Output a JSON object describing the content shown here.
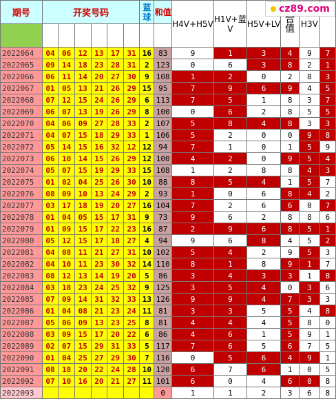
{
  "watermark": "cz89.com",
  "headers": {
    "period": "期号",
    "winning_numbers": "开奖号码",
    "blue_ball": "蓝球",
    "sum": "和值",
    "metrics": [
      "H4V+H5V",
      "H1V+蓝V",
      "H5V+LV",
      "合值",
      "H3V",
      ""
    ]
  },
  "rows": [
    {
      "period": "2022064",
      "reds": [
        "04",
        "06",
        "12",
        "13",
        "17",
        "31"
      ],
      "blue": "16",
      "sum": "83",
      "m": [
        {
          "v": "9",
          "r": false
        },
        {
          "v": "1",
          "r": true
        },
        {
          "v": "3",
          "r": true
        },
        {
          "v": "4",
          "r": true
        },
        {
          "v": "9",
          "r": false
        },
        {
          "v": "7",
          "r": true
        }
      ]
    },
    {
      "period": "2022065",
      "reds": [
        "09",
        "14",
        "18",
        "23",
        "28",
        "31"
      ],
      "blue": "2",
      "sum": "123",
      "m": [
        {
          "v": "0",
          "r": false
        },
        {
          "v": "6",
          "r": false
        },
        {
          "v": "3",
          "r": true
        },
        {
          "v": "8",
          "r": true
        },
        {
          "v": "2",
          "r": false
        },
        {
          "v": "1",
          "r": true
        }
      ]
    },
    {
      "period": "2022066",
      "reds": [
        "06",
        "11",
        "14",
        "20",
        "27",
        "30"
      ],
      "blue": "9",
      "sum": "108",
      "m": [
        {
          "v": "1",
          "r": true
        },
        {
          "v": "2",
          "r": true
        },
        {
          "v": "0",
          "r": false
        },
        {
          "v": "2",
          "r": false
        },
        {
          "v": "8",
          "r": false
        },
        {
          "v": "3",
          "r": true
        }
      ]
    },
    {
      "period": "2022067",
      "reds": [
        "01",
        "05",
        "13",
        "21",
        "26",
        "29"
      ],
      "blue": "15",
      "sum": "95",
      "m": [
        {
          "v": "7",
          "r": true
        },
        {
          "v": "9",
          "r": true
        },
        {
          "v": "6",
          "r": true
        },
        {
          "v": "9",
          "r": true
        },
        {
          "v": "4",
          "r": false
        },
        {
          "v": "5",
          "r": true
        }
      ]
    },
    {
      "period": "2022068",
      "reds": [
        "07",
        "12",
        "15",
        "24",
        "26",
        "29"
      ],
      "blue": "6",
      "sum": "113",
      "m": [
        {
          "v": "7",
          "r": true
        },
        {
          "v": "5",
          "r": true
        },
        {
          "v": "1",
          "r": false
        },
        {
          "v": "8",
          "r": false
        },
        {
          "v": "3",
          "r": false
        },
        {
          "v": "7",
          "r": true
        }
      ]
    },
    {
      "period": "2022069",
      "reds": [
        "06",
        "07",
        "13",
        "19",
        "26",
        "29"
      ],
      "blue": "8",
      "sum": "100",
      "m": [
        {
          "v": "0",
          "r": false
        },
        {
          "v": "6",
          "r": true
        },
        {
          "v": "2",
          "r": false
        },
        {
          "v": "8",
          "r": false
        },
        {
          "v": "5",
          "r": false
        },
        {
          "v": "5",
          "r": true
        }
      ]
    },
    {
      "period": "2022070",
      "reds": [
        "04",
        "06",
        "09",
        "27",
        "28",
        "33"
      ],
      "blue": "2",
      "sum": "107",
      "m": [
        {
          "v": "5",
          "r": true
        },
        {
          "v": "8",
          "r": true
        },
        {
          "v": "4",
          "r": true
        },
        {
          "v": "8",
          "r": true
        },
        {
          "v": "3",
          "r": false
        },
        {
          "v": "3",
          "r": true
        }
      ]
    },
    {
      "period": "2022071",
      "reds": [
        "04",
        "07",
        "15",
        "18",
        "29",
        "33"
      ],
      "blue": "1",
      "sum": "106",
      "m": [
        {
          "v": "5",
          "r": true
        },
        {
          "v": "2",
          "r": false
        },
        {
          "v": "0",
          "r": false
        },
        {
          "v": "0",
          "r": false
        },
        {
          "v": "9",
          "r": true
        },
        {
          "v": "8",
          "r": true
        }
      ]
    },
    {
      "period": "2022072",
      "reds": [
        "05",
        "14",
        "15",
        "16",
        "32",
        "12"
      ],
      "blue": "12",
      "sum": "94",
      "m": [
        {
          "v": "7",
          "r": true
        },
        {
          "v": "1",
          "r": false
        },
        {
          "v": "0",
          "r": false
        },
        {
          "v": "1",
          "r": false
        },
        {
          "v": "5",
          "r": true
        },
        {
          "v": "9",
          "r": false
        }
      ]
    },
    {
      "period": "2022073",
      "reds": [
        "06",
        "10",
        "14",
        "15",
        "26",
        "29"
      ],
      "blue": "12",
      "sum": "100",
      "m": [
        {
          "v": "4",
          "r": true
        },
        {
          "v": "2",
          "r": true
        },
        {
          "v": "0",
          "r": false
        },
        {
          "v": "9",
          "r": true
        },
        {
          "v": "5",
          "r": true
        },
        {
          "v": "4",
          "r": true
        }
      ]
    },
    {
      "period": "2022074",
      "reds": [
        "05",
        "07",
        "15",
        "19",
        "29",
        "33"
      ],
      "blue": "15",
      "sum": "108",
      "m": [
        {
          "v": "1",
          "r": false
        },
        {
          "v": "2",
          "r": false
        },
        {
          "v": "8",
          "r": false
        },
        {
          "v": "8",
          "r": false
        },
        {
          "v": "4",
          "r": true
        },
        {
          "v": "3",
          "r": true
        }
      ]
    },
    {
      "period": "2022075",
      "reds": [
        "01",
        "02",
        "04",
        "25",
        "26",
        "30"
      ],
      "blue": "10",
      "sum": "88",
      "m": [
        {
          "v": "8",
          "r": true
        },
        {
          "v": "5",
          "r": true
        },
        {
          "v": "4",
          "r": true
        },
        {
          "v": "1",
          "r": false
        },
        {
          "v": "5",
          "r": true
        },
        {
          "v": "7",
          "r": false
        }
      ]
    },
    {
      "period": "2022076",
      "reds": [
        "08",
        "09",
        "10",
        "13",
        "24",
        "29"
      ],
      "blue": "2",
      "sum": "93",
      "m": [
        {
          "v": "1",
          "r": true
        },
        {
          "v": "0",
          "r": false
        },
        {
          "v": "6",
          "r": false
        },
        {
          "v": "8",
          "r": true
        },
        {
          "v": "4",
          "r": true
        },
        {
          "v": "2",
          "r": false
        }
      ]
    },
    {
      "period": "2022077",
      "reds": [
        "03",
        "17",
        "18",
        "19",
        "20",
        "27"
      ],
      "blue": "16",
      "sum": "104",
      "m": [
        {
          "v": "7",
          "r": true
        },
        {
          "v": "2",
          "r": false
        },
        {
          "v": "6",
          "r": false
        },
        {
          "v": "6",
          "r": true
        },
        {
          "v": "0",
          "r": false
        },
        {
          "v": "7",
          "r": true
        }
      ]
    },
    {
      "period": "2022078",
      "reds": [
        "01",
        "04",
        "05",
        "15",
        "17",
        "31"
      ],
      "blue": "9",
      "sum": "73",
      "m": [
        {
          "v": "9",
          "r": true
        },
        {
          "v": "6",
          "r": false
        },
        {
          "v": "2",
          "r": false
        },
        {
          "v": "8",
          "r": false
        },
        {
          "v": "8",
          "r": false
        },
        {
          "v": "6",
          "r": false
        }
      ]
    },
    {
      "period": "2022079",
      "reds": [
        "01",
        "09",
        "15",
        "17",
        "22",
        "23"
      ],
      "blue": "16",
      "sum": "87",
      "m": [
        {
          "v": "2",
          "r": true
        },
        {
          "v": "9",
          "r": true
        },
        {
          "v": "6",
          "r": true
        },
        {
          "v": "8",
          "r": true
        },
        {
          "v": "5",
          "r": true
        },
        {
          "v": "1",
          "r": true
        }
      ]
    },
    {
      "period": "2022080",
      "reds": [
        "05",
        "12",
        "15",
        "17",
        "18",
        "27"
      ],
      "blue": "4",
      "sum": "94",
      "m": [
        {
          "v": "9",
          "r": false
        },
        {
          "v": "6",
          "r": false
        },
        {
          "v": "8",
          "r": true
        },
        {
          "v": "4",
          "r": false
        },
        {
          "v": "5",
          "r": false
        },
        {
          "v": "2",
          "r": true
        }
      ]
    },
    {
      "period": "2022081",
      "reds": [
        "04",
        "08",
        "11",
        "21",
        "27",
        "31"
      ],
      "blue": "10",
      "sum": "102",
      "m": [
        {
          "v": "5",
          "r": true
        },
        {
          "v": "4",
          "r": true
        },
        {
          "v": "2",
          "r": false
        },
        {
          "v": "9",
          "r": false
        },
        {
          "v": "5",
          "r": true
        },
        {
          "v": "3",
          "r": false
        }
      ]
    },
    {
      "period": "2022082",
      "reds": [
        "04",
        "10",
        "11",
        "23",
        "30",
        "32"
      ],
      "blue": "14",
      "sum": "110",
      "m": [
        {
          "v": "8",
          "r": true
        },
        {
          "v": "1",
          "r": true
        },
        {
          "v": "8",
          "r": false
        },
        {
          "v": "9",
          "r": true
        },
        {
          "v": "1",
          "r": true
        },
        {
          "v": "7",
          "r": false
        }
      ]
    },
    {
      "period": "2022083",
      "reds": [
        "08",
        "12",
        "13",
        "14",
        "19",
        "20"
      ],
      "blue": "5",
      "sum": "86",
      "m": [
        {
          "v": "3",
          "r": true
        },
        {
          "v": "4",
          "r": true
        },
        {
          "v": "3",
          "r": true
        },
        {
          "v": "3",
          "r": true
        },
        {
          "v": "1",
          "r": false
        },
        {
          "v": "8",
          "r": true
        }
      ]
    },
    {
      "period": "2022084",
      "reds": [
        "03",
        "18",
        "23",
        "24",
        "25",
        "32"
      ],
      "blue": "9",
      "sum": "125",
      "m": [
        {
          "v": "3",
          "r": true
        },
        {
          "v": "5",
          "r": true
        },
        {
          "v": "4",
          "r": true
        },
        {
          "v": "0",
          "r": false
        },
        {
          "v": "3",
          "r": true
        },
        {
          "v": "6",
          "r": false
        }
      ]
    },
    {
      "period": "2022085",
      "reds": [
        "07",
        "09",
        "14",
        "31",
        "32",
        "33"
      ],
      "blue": "13",
      "sum": "126",
      "m": [
        {
          "v": "9",
          "r": true
        },
        {
          "v": "9",
          "r": true
        },
        {
          "v": "4",
          "r": true
        },
        {
          "v": "7",
          "r": true
        },
        {
          "v": "3",
          "r": true
        },
        {
          "v": "3",
          "r": false
        }
      ]
    },
    {
      "period": "2022086",
      "reds": [
        "01",
        "04",
        "08",
        "21",
        "23",
        "24"
      ],
      "blue": "11",
      "sum": "81",
      "m": [
        {
          "v": "3",
          "r": true
        },
        {
          "v": "3",
          "r": true
        },
        {
          "v": "5",
          "r": false
        },
        {
          "v": "5",
          "r": true
        },
        {
          "v": "4",
          "r": false
        },
        {
          "v": "8",
          "r": true
        }
      ]
    },
    {
      "period": "2022087",
      "reds": [
        "05",
        "06",
        "09",
        "13",
        "23",
        "25"
      ],
      "blue": "8",
      "sum": "81",
      "m": [
        {
          "v": "4",
          "r": true
        },
        {
          "v": "4",
          "r": true
        },
        {
          "v": "4",
          "r": false
        },
        {
          "v": "5",
          "r": true
        },
        {
          "v": "8",
          "r": false
        },
        {
          "v": "0",
          "r": false
        }
      ]
    },
    {
      "period": "2022088",
      "reds": [
        "03",
        "09",
        "15",
        "17",
        "20",
        "22"
      ],
      "blue": "6",
      "sum": "86",
      "m": [
        {
          "v": "4",
          "r": true
        },
        {
          "v": "6",
          "r": true
        },
        {
          "v": "1",
          "r": false
        },
        {
          "v": "5",
          "r": true
        },
        {
          "v": "9",
          "r": false
        },
        {
          "v": "1",
          "r": false
        }
      ]
    },
    {
      "period": "2022089",
      "reds": [
        "02",
        "07",
        "15",
        "29",
        "31",
        "33"
      ],
      "blue": "5",
      "sum": "117",
      "m": [
        {
          "v": "7",
          "r": true
        },
        {
          "v": "6",
          "r": true
        },
        {
          "v": "5",
          "r": false
        },
        {
          "v": "6",
          "r": true
        },
        {
          "v": "7",
          "r": false
        },
        {
          "v": "5",
          "r": false
        }
      ]
    },
    {
      "period": "2022090",
      "reds": [
        "01",
        "04",
        "25",
        "27",
        "29",
        "30"
      ],
      "blue": "7",
      "sum": "116",
      "m": [
        {
          "v": "0",
          "r": false
        },
        {
          "v": "5",
          "r": true
        },
        {
          "v": "6",
          "r": true
        },
        {
          "v": "4",
          "r": true
        },
        {
          "v": "9",
          "r": true
        },
        {
          "v": "1",
          "r": false
        }
      ]
    },
    {
      "period": "2022091",
      "reds": [
        "08",
        "18",
        "20",
        "22",
        "24",
        "28"
      ],
      "blue": "10",
      "sum": "120",
      "m": [
        {
          "v": "6",
          "r": true
        },
        {
          "v": "7",
          "r": false
        },
        {
          "v": "6",
          "r": true
        },
        {
          "v": "1",
          "r": false
        },
        {
          "v": "0",
          "r": false
        },
        {
          "v": "5",
          "r": false
        }
      ]
    },
    {
      "period": "2022092",
      "reds": [
        "07",
        "10",
        "16",
        "20",
        "21",
        "27"
      ],
      "blue": "11",
      "sum": "101",
      "m": [
        {
          "v": "6",
          "r": true
        },
        {
          "v": "0",
          "r": false
        },
        {
          "v": "4",
          "r": false
        },
        {
          "v": "6",
          "r": true
        },
        {
          "v": "0",
          "r": true
        },
        {
          "v": "8",
          "r": false
        }
      ]
    },
    {
      "period": "2022093",
      "reds": [
        "",
        "",
        "",
        "",
        "",
        ""
      ],
      "blue": "",
      "sum": "0",
      "m": [
        {
          "v": "1",
          "r": false
        },
        {
          "v": "1",
          "r": false
        },
        {
          "v": "2",
          "r": false
        },
        {
          "v": "3",
          "r": false
        },
        {
          "v": "6",
          "r": false
        },
        {
          "v": "8",
          "r": false
        }
      ]
    }
  ]
}
